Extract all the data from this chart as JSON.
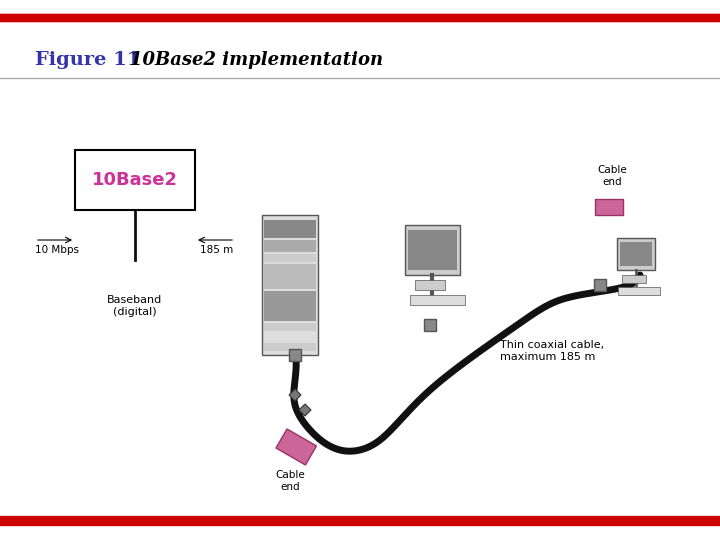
{
  "title": "Figure 11",
  "subtitle": "10Base2 implementation",
  "title_color": "#3333aa",
  "subtitle_color": "#000000",
  "bg_color": "#ffffff",
  "red_line_color": "#cc0000",
  "box_label": "10Base2",
  "box_label_color": "#cc3399",
  "box_border_color": "#000000",
  "label_10mbps": "10 Mbps",
  "label_185m": "185 m",
  "label_baseband": "Baseband\n(digital)",
  "label_cable_end1": "Cable\nend",
  "label_cable_end2": "Cable\nend",
  "label_thin_coax": "Thin coaxial cable,\nmaximum 185 m",
  "cable_color": "#111111",
  "connector_color": "#888888",
  "terminator_color": "#cc6699"
}
